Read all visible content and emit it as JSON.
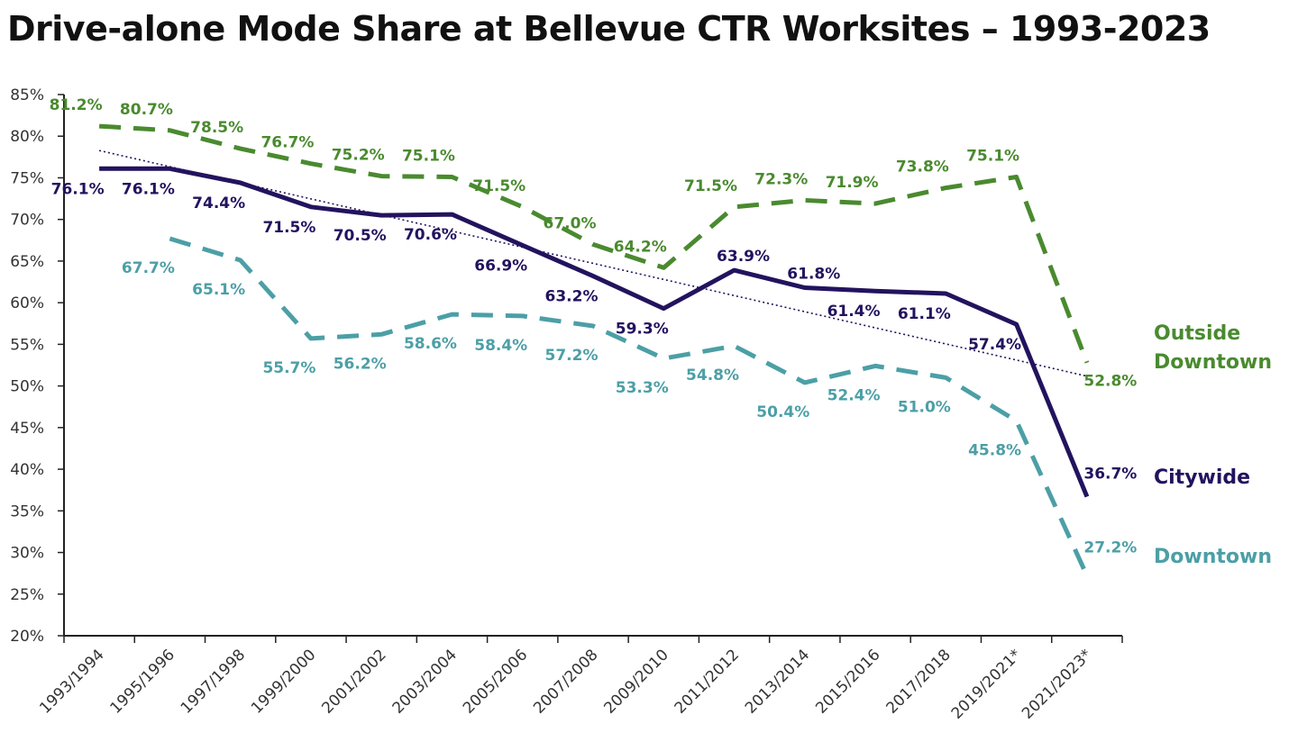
{
  "chart_data": {
    "type": "line",
    "title": "Drive-alone Mode Share at Bellevue CTR Worksites – 1993-2023",
    "xlabel": "",
    "ylabel": "",
    "ylim": [
      20,
      85
    ],
    "y_ticks": [
      20,
      25,
      30,
      35,
      40,
      45,
      50,
      55,
      60,
      65,
      70,
      75,
      80,
      85
    ],
    "y_tick_labels": [
      "20%",
      "25%",
      "30%",
      "35%",
      "40%",
      "45%",
      "50%",
      "55%",
      "60%",
      "65%",
      "70%",
      "75%",
      "80%",
      "85%"
    ],
    "categories": [
      "1993/1994",
      "1995/1996",
      "1997/1998",
      "1999/2000",
      "2001/2002",
      "2003/2004",
      "2005/2006",
      "2007/2008",
      "2009/2010",
      "2011/2012",
      "2013/2014",
      "2015/2016",
      "2017/2018",
      "2019/2021*",
      "2021/2023*"
    ],
    "grid": false,
    "legend": "right",
    "series": [
      {
        "name": "Outside Downtown",
        "name_lines": [
          "Outside",
          "Downtown"
        ],
        "color": "#4a8a2f",
        "style": "dashed",
        "values": [
          81.2,
          80.7,
          78.5,
          76.7,
          75.2,
          75.1,
          71.5,
          67.0,
          64.2,
          71.5,
          72.3,
          71.9,
          73.8,
          75.1,
          52.8
        ],
        "labels": [
          "81.2%",
          "80.7%",
          "78.5%",
          "76.7%",
          "75.2%",
          "75.1%",
          "71.5%",
          "67.0%",
          "64.2%",
          "71.5%",
          "72.3%",
          "71.9%",
          "73.8%",
          "75.1%",
          "52.8%"
        ]
      },
      {
        "name": "Citywide",
        "name_lines": [
          "Citywide"
        ],
        "color": "#23135e",
        "style": "solid",
        "values": [
          76.1,
          76.1,
          74.4,
          71.5,
          70.5,
          70.6,
          66.9,
          63.2,
          59.3,
          63.9,
          61.8,
          61.4,
          61.1,
          57.4,
          36.7
        ],
        "labels": [
          "76.1%",
          "76.1%",
          "74.4%",
          "71.5%",
          "70.5%",
          "70.6%",
          "66.9%",
          "63.2%",
          "59.3%",
          "63.9%",
          "61.8%",
          "61.4%",
          "61.1%",
          "57.4%",
          "36.7%"
        ]
      },
      {
        "name": "Downtown",
        "name_lines": [
          "Downtown"
        ],
        "color": "#4c9fa6",
        "style": "dashed",
        "values": [
          null,
          67.7,
          65.1,
          55.7,
          56.2,
          58.6,
          58.4,
          57.2,
          53.3,
          54.8,
          50.4,
          52.4,
          51.0,
          45.8,
          27.2
        ],
        "labels": [
          null,
          "67.7%",
          "65.1%",
          "55.7%",
          "56.2%",
          "58.6%",
          "58.4%",
          "57.2%",
          "53.3%",
          "54.8%",
          "50.4%",
          "52.4%",
          "51.0%",
          "45.8%",
          "27.2%"
        ]
      }
    ],
    "trendline": {
      "series": "Citywide",
      "style": "dotted",
      "color": "#23135e"
    }
  }
}
